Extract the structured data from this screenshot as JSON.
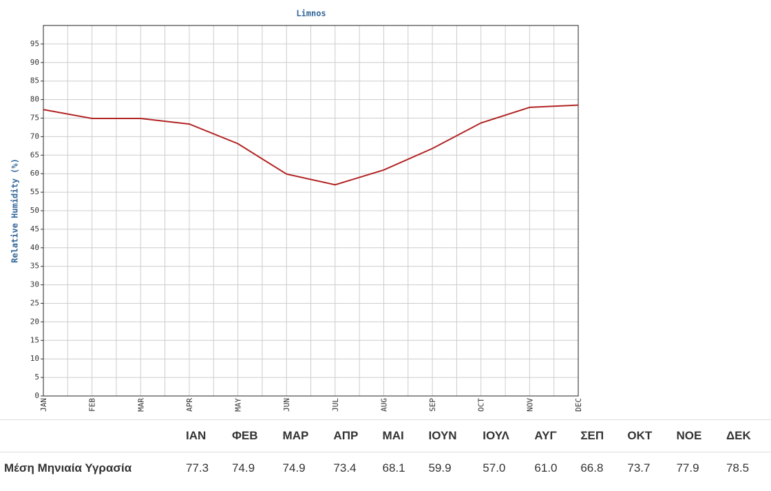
{
  "chart_data": {
    "type": "line",
    "title": "Limnos",
    "y_label": "Relative Humidity (%)",
    "categories": [
      "JAN",
      "FEB",
      "MAR",
      "APR",
      "MAY",
      "JUN",
      "JUL",
      "AUG",
      "SEP",
      "OCT",
      "NOV",
      "DEC"
    ],
    "values": [
      77.3,
      74.9,
      74.9,
      73.4,
      68.1,
      59.9,
      57.0,
      61.0,
      66.8,
      73.7,
      77.9,
      78.5
    ],
    "color": "#b22222",
    "ylim": [
      0,
      100
    ],
    "yticks": [
      0,
      5,
      10,
      15,
      20,
      25,
      30,
      35,
      40,
      45,
      50,
      55,
      60,
      65,
      70,
      75,
      80,
      85,
      90,
      95
    ],
    "grid": true
  },
  "table": {
    "header": [
      "ΙΑΝ",
      "ΦΕΒ",
      "ΜΑΡ",
      "ΑΠΡ",
      "ΜΑΙ",
      "ΙΟΥΝ",
      "ΙΟΥΛ",
      "ΑΥΓ",
      "ΣΕΠ",
      "ΟΚΤ",
      "ΝΟΕ",
      "ΔΕΚ"
    ],
    "row_label": "Μέση Μηνιαία Υγρασία",
    "row": [
      "77.3",
      "74.9",
      "74.9",
      "73.4",
      "68.1",
      "59.9",
      "57.0",
      "61.0",
      "66.8",
      "73.7",
      "77.9",
      "78.5"
    ]
  }
}
